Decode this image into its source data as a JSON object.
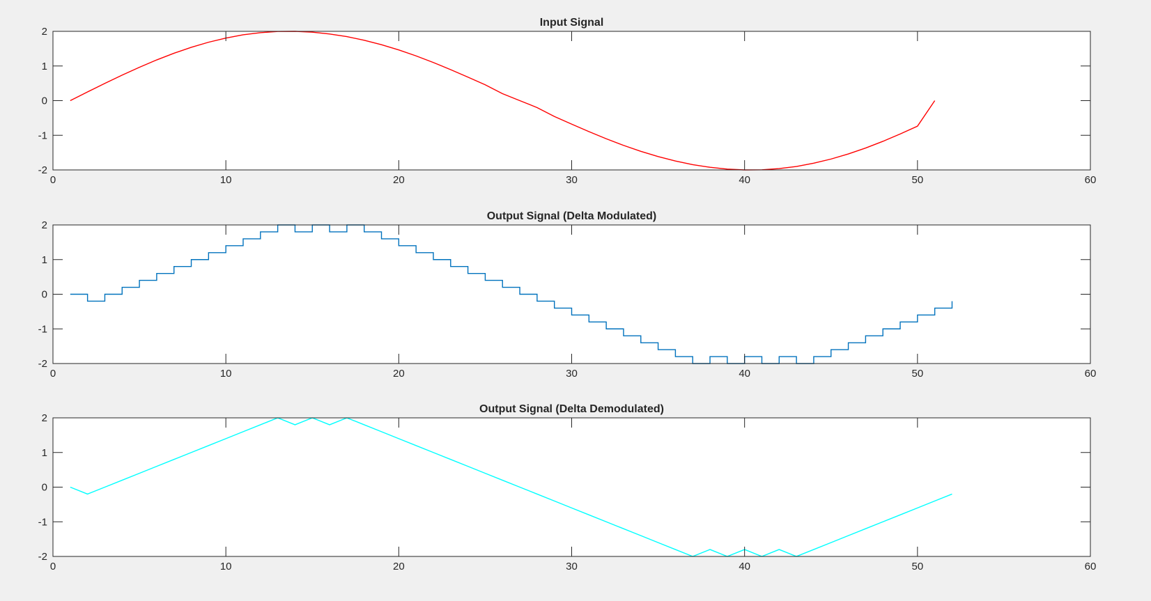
{
  "figure": {
    "background": "#f0f0f0"
  },
  "chart_data": [
    {
      "type": "line",
      "title": "Input Signal",
      "xlabel": "",
      "ylabel": "",
      "xlim": [
        0,
        60
      ],
      "ylim": [
        -2,
        2
      ],
      "xticks": [
        0,
        10,
        20,
        30,
        40,
        50,
        60
      ],
      "yticks": [
        2,
        1,
        0,
        -1,
        -2
      ],
      "grid": false,
      "series": [
        {
          "color": "#ff0000",
          "style": "line",
          "x": [
            1,
            2,
            3,
            4,
            5,
            6,
            7,
            8,
            9,
            10,
            11,
            12,
            13,
            14,
            15,
            16,
            17,
            18,
            19,
            20,
            21,
            22,
            23,
            24,
            25,
            26,
            27,
            28,
            29,
            30,
            31,
            32,
            33,
            34,
            35,
            36,
            37,
            38,
            39,
            40,
            41,
            42,
            43,
            44,
            45,
            46,
            47,
            48,
            49,
            50,
            51
          ],
          "y": [
            0,
            0.251,
            0.497,
            0.737,
            0.963,
            1.175,
            1.368,
            1.539,
            1.686,
            1.805,
            1.902,
            1.962,
            1.996,
            2.0,
            1.976,
            1.924,
            1.848,
            1.743,
            1.614,
            1.463,
            1.291,
            1.1,
            0.895,
            0.679,
            0.457,
            0.2,
            0.0,
            -0.2,
            -0.457,
            -0.679,
            -0.895,
            -1.1,
            -1.291,
            -1.463,
            -1.614,
            -1.743,
            -1.848,
            -1.924,
            -1.976,
            -2.0,
            -1.996,
            -1.962,
            -1.902,
            -1.805,
            -1.686,
            -1.539,
            -1.368,
            -1.175,
            -0.963,
            -0.737,
            0
          ]
        }
      ]
    },
    {
      "type": "line",
      "title": "Output Signal (Delta Modulated)",
      "xlabel": "",
      "ylabel": "",
      "xlim": [
        0,
        60
      ],
      "ylim": [
        -2,
        2
      ],
      "xticks": [
        0,
        10,
        20,
        30,
        40,
        50,
        60
      ],
      "yticks": [
        2,
        1,
        0,
        -1,
        -2
      ],
      "grid": false,
      "series": [
        {
          "color": "#0072bd",
          "style": "stairs",
          "x": [
            1,
            2,
            3,
            4,
            5,
            6,
            7,
            8,
            9,
            10,
            11,
            12,
            13,
            14,
            15,
            16,
            17,
            18,
            19,
            20,
            21,
            22,
            23,
            24,
            25,
            26,
            27,
            28,
            29,
            30,
            31,
            32,
            33,
            34,
            35,
            36,
            37,
            38,
            39,
            40,
            41,
            42,
            43,
            44,
            45,
            46,
            47,
            48,
            49,
            50,
            51,
            52
          ],
          "y": [
            0,
            -0.2,
            0,
            0.2,
            0.4,
            0.6,
            0.8,
            1.0,
            1.2,
            1.4,
            1.6,
            1.8,
            2.0,
            1.8,
            2.0,
            1.8,
            2.0,
            1.8,
            1.6,
            1.4,
            1.2,
            1.0,
            0.8,
            0.6,
            0.4,
            0.2,
            0,
            -0.2,
            -0.4,
            -0.6,
            -0.8,
            -1.0,
            -1.2,
            -1.4,
            -1.6,
            -1.8,
            -2.0,
            -1.8,
            -2.0,
            -1.8,
            -2.0,
            -1.8,
            -2.0,
            -1.8,
            -1.6,
            -1.4,
            -1.2,
            -1.0,
            -0.8,
            -0.6,
            -0.4,
            -0.2
          ]
        }
      ]
    },
    {
      "type": "line",
      "title": "Output Signal (Delta Demodulated)",
      "xlabel": "",
      "ylabel": "",
      "xlim": [
        0,
        60
      ],
      "ylim": [
        -2,
        2
      ],
      "xticks": [
        0,
        10,
        20,
        30,
        40,
        50,
        60
      ],
      "yticks": [
        2,
        1,
        0,
        -1,
        -2
      ],
      "grid": false,
      "series": [
        {
          "color": "#00ffff",
          "style": "line",
          "x": [
            1,
            2,
            3,
            4,
            5,
            6,
            7,
            8,
            9,
            10,
            11,
            12,
            13,
            14,
            15,
            16,
            17,
            18,
            19,
            20,
            21,
            22,
            23,
            24,
            25,
            26,
            27,
            28,
            29,
            30,
            31,
            32,
            33,
            34,
            35,
            36,
            37,
            38,
            39,
            40,
            41,
            42,
            43,
            44,
            45,
            46,
            47,
            48,
            49,
            50,
            51,
            52
          ],
          "y": [
            0,
            -0.2,
            0,
            0.2,
            0.4,
            0.6,
            0.8,
            1.0,
            1.2,
            1.4,
            1.6,
            1.8,
            2.0,
            1.8,
            2.0,
            1.8,
            2.0,
            1.8,
            1.6,
            1.4,
            1.2,
            1.0,
            0.8,
            0.6,
            0.4,
            0.2,
            0,
            -0.2,
            -0.4,
            -0.6,
            -0.8,
            -1.0,
            -1.2,
            -1.4,
            -1.6,
            -1.8,
            -2.0,
            -1.8,
            -2.0,
            -1.8,
            -2.0,
            -1.8,
            -2.0,
            -1.8,
            -1.6,
            -1.4,
            -1.2,
            -1.0,
            -0.8,
            -0.6,
            -0.4,
            -0.2
          ]
        }
      ]
    }
  ]
}
